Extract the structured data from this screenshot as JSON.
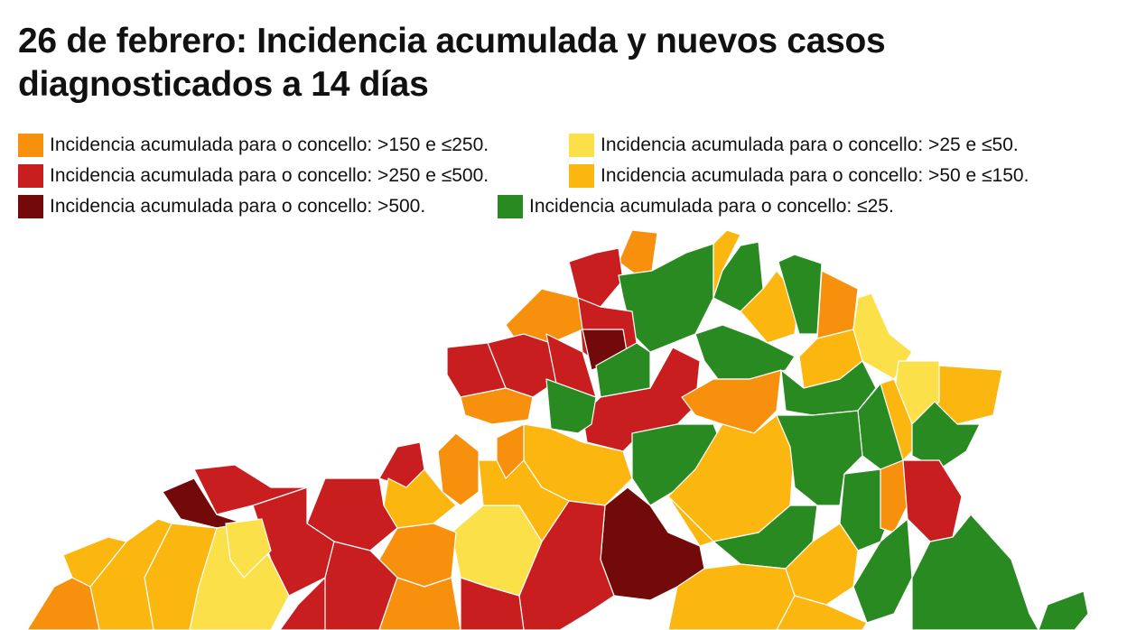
{
  "title": "26 de febrero: Incidencia acumulada y nuevos casos diagnosticados a 14 días",
  "legend": [
    {
      "label": "Incidencia acumulada para o concello: >150 e ≤250.",
      "color": "#f7900d"
    },
    {
      "label": "Incidencia acumulada para o concello: >250 e ≤500.",
      "color": "#c91e1f"
    },
    {
      "label": "Incidencia acumulada para o concello: >500.",
      "color": "#720a0a"
    },
    {
      "label": "Incidencia acumulada para o concello: >25 e ≤50.",
      "color": "#fbe04a"
    },
    {
      "label": "Incidencia acumulada para o concello: >50 e ≤150.",
      "color": "#fbb60f"
    },
    {
      "label": "Incidencia acumulada para o concello: ≤25.",
      "color": "#2a8a22"
    }
  ]
}
